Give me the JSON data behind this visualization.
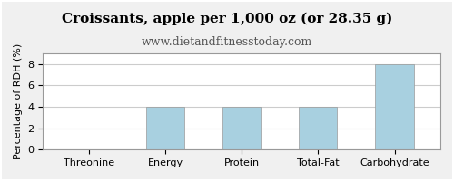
{
  "title": "Croissants, apple per 1,000 oz (or 28.35 g)",
  "subtitle": "www.dietandfitnesstoday.com",
  "categories": [
    "Threonine",
    "Energy",
    "Protein",
    "Total-Fat",
    "Carbohydrate"
  ],
  "values": [
    0,
    4,
    4,
    4,
    8
  ],
  "bar_color": "#a8d0e0",
  "ylabel": "Percentage of RDH (%)",
  "ylim": [
    0,
    9
  ],
  "yticks": [
    0,
    2,
    4,
    6,
    8
  ],
  "background_color": "#f0f0f0",
  "plot_background": "#ffffff",
  "border_color": "#999999",
  "grid_color": "#cccccc",
  "title_fontsize": 11,
  "subtitle_fontsize": 9,
  "tick_fontsize": 8,
  "ylabel_fontsize": 8
}
